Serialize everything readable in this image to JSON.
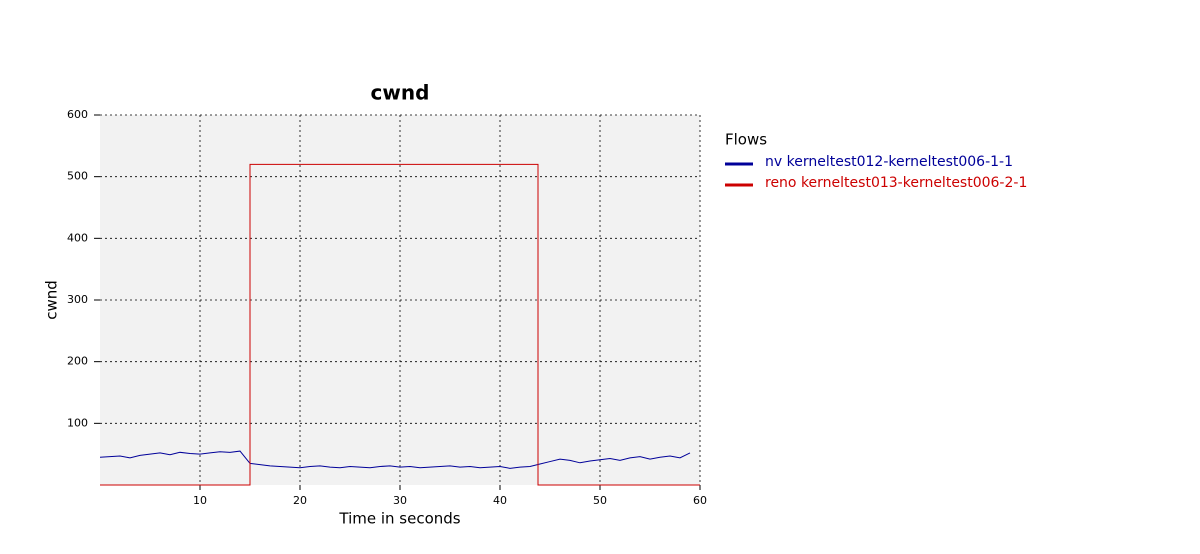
{
  "chart_data": {
    "type": "line",
    "title": "cwnd",
    "x_label": "Time in seconds",
    "y_label": "cwnd",
    "legend_title": "Flows",
    "legend": "right",
    "grid": true,
    "background": "#f2f2f2",
    "xlim": [
      0,
      60
    ],
    "xticks": [
      10,
      20,
      30,
      40,
      50,
      60
    ],
    "ylim": [
      0,
      600
    ],
    "yticks": [
      100,
      200,
      300,
      400,
      500,
      600
    ],
    "series": [
      {
        "name": "nv kerneltest012-kerneltest006-1-1",
        "color": "#000099",
        "x": [
          0,
          1,
          2,
          3,
          4,
          5,
          6,
          7,
          8,
          9,
          10,
          11,
          12,
          13,
          14,
          15,
          16,
          17,
          18,
          19,
          20,
          21,
          22,
          23,
          24,
          25,
          26,
          27,
          28,
          29,
          30,
          31,
          32,
          33,
          34,
          35,
          36,
          37,
          38,
          39,
          40,
          41,
          42,
          43,
          44,
          45,
          46,
          47,
          48,
          49,
          50,
          51,
          52,
          53,
          54,
          55,
          56,
          57,
          58,
          59
        ],
        "values": [
          45,
          46,
          47,
          44,
          48,
          50,
          52,
          49,
          53,
          51,
          50,
          52,
          54,
          53,
          55,
          35,
          33,
          31,
          30,
          29,
          28,
          30,
          31,
          29,
          28,
          30,
          29,
          28,
          30,
          31,
          29,
          30,
          28,
          29,
          30,
          31,
          29,
          30,
          28,
          29,
          30,
          27,
          29,
          30,
          34,
          38,
          42,
          40,
          36,
          39,
          41,
          43,
          40,
          44,
          46,
          42,
          45,
          47,
          44,
          52
        ]
      },
      {
        "name": "reno kerneltest013-kerneltest006-2-1",
        "color": "#cc0000",
        "x": [
          0,
          15,
          15,
          43.8,
          43.8,
          60
        ],
        "values": [
          0,
          0,
          520,
          520,
          0,
          0
        ]
      }
    ]
  }
}
